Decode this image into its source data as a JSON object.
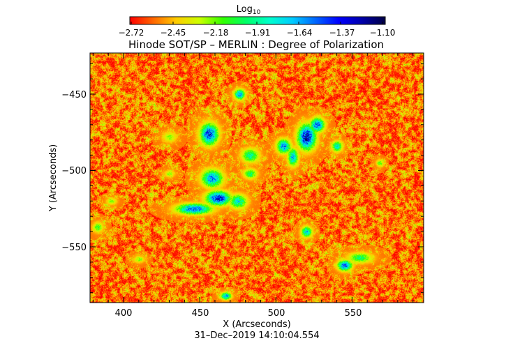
{
  "chart_data": {
    "type": "heatmap",
    "title": "Hinode SOT/SP – MERLIN : Degree of Polarization",
    "xlabel": "X (Arcseconds)",
    "ylabel": "Y (Arcseconds)",
    "timestamp": "31–Dec–2019 14:10:04.554",
    "xlim": [
      378,
      597
    ],
    "ylim": [
      -588,
      -468
    ],
    "xticks": [
      400,
      450,
      500,
      550
    ],
    "yticks": [
      -450,
      -500,
      -550
    ],
    "xtick_labels": [
      "400",
      "450",
      "500",
      "550"
    ],
    "ytick_labels": [
      "−450",
      "−500",
      "−550"
    ],
    "colorbar": {
      "title_main": "Log",
      "title_sub": "10",
      "min": -2.72,
      "max": -1.1,
      "ticks": [
        "−2.72",
        "−2.45",
        "−2.18",
        "−1.91",
        "−1.64",
        "−1.37",
        "−1.10"
      ],
      "colors": [
        "#ff0000",
        "#ff6600",
        "#ffcc00",
        "#ccff00",
        "#33ff00",
        "#00ff66",
        "#00ffcc",
        "#00ccff",
        "#0066ff",
        "#0000ff",
        "#0000aa",
        "#000044"
      ]
    },
    "background_level": -2.55,
    "features": [
      {
        "x": 430,
        "y": -478,
        "rx": 4,
        "ry": 3,
        "peak": -2.2
      },
      {
        "x": 456,
        "y": -476,
        "rx": 5,
        "ry": 6,
        "peak": -1.4
      },
      {
        "x": 458,
        "y": -505,
        "rx": 6,
        "ry": 5,
        "peak": -1.6
      },
      {
        "x": 462,
        "y": -518,
        "rx": 7,
        "ry": 4,
        "peak": -1.35
      },
      {
        "x": 446,
        "y": -525,
        "rx": 10,
        "ry": 3,
        "peak": -1.5
      },
      {
        "x": 475,
        "y": -520,
        "rx": 5,
        "ry": 4,
        "peak": -1.8
      },
      {
        "x": 476,
        "y": -450,
        "rx": 3,
        "ry": 3,
        "peak": -1.6
      },
      {
        "x": 483,
        "y": -490,
        "rx": 5,
        "ry": 4,
        "peak": -1.9
      },
      {
        "x": 483,
        "y": -502,
        "rx": 4,
        "ry": 3,
        "peak": -2.0
      },
      {
        "x": 505,
        "y": -484,
        "rx": 4,
        "ry": 4,
        "peak": -1.6
      },
      {
        "x": 511,
        "y": -491,
        "rx": 3,
        "ry": 5,
        "peak": -1.7
      },
      {
        "x": 520,
        "y": -478,
        "rx": 5,
        "ry": 7,
        "peak": -1.25
      },
      {
        "x": 527,
        "y": -470,
        "rx": 4,
        "ry": 4,
        "peak": -1.5
      },
      {
        "x": 540,
        "y": -484,
        "rx": 3,
        "ry": 3,
        "peak": -1.8
      },
      {
        "x": 520,
        "y": -540,
        "rx": 3,
        "ry": 3,
        "peak": -1.7
      },
      {
        "x": 545,
        "y": -562,
        "rx": 4,
        "ry": 3,
        "peak": -1.5
      },
      {
        "x": 555,
        "y": -557,
        "rx": 7,
        "ry": 3,
        "peak": -2.0
      },
      {
        "x": 383,
        "y": -537,
        "rx": 3,
        "ry": 3,
        "peak": -2.1
      },
      {
        "x": 392,
        "y": -520,
        "rx": 3,
        "ry": 2,
        "peak": -2.2
      },
      {
        "x": 467,
        "y": -582,
        "rx": 3,
        "ry": 2,
        "peak": -1.6
      },
      {
        "x": 568,
        "y": -495,
        "rx": 2,
        "ry": 2,
        "peak": -2.1
      },
      {
        "x": 410,
        "y": -558,
        "rx": 3,
        "ry": 2,
        "peak": -2.2
      },
      {
        "x": 430,
        "y": -502,
        "rx": 3,
        "ry": 2,
        "peak": -2.2
      }
    ]
  }
}
